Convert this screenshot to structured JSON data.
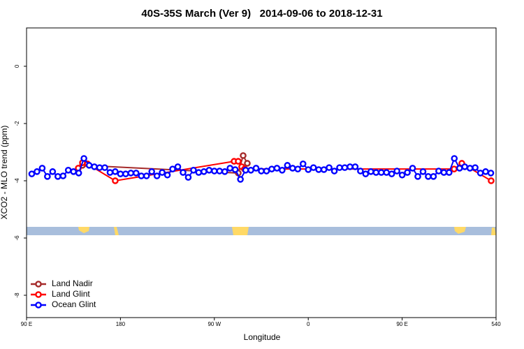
{
  "chart_data": {
    "type": "line",
    "title": "40S-35S March (Ver 9)   2014-09-06 to 2018-12-31",
    "xlabel": "Longitude",
    "ylabel": "XCO2 - MLO trend (ppm)",
    "xlim": [
      90,
      540
    ],
    "ylim": [
      -8.78,
      1.34
    ],
    "xticks": [
      {
        "value": 90,
        "label": "90 E"
      },
      180,
      {
        "value": 270,
        "label": "90 W"
      },
      {
        "value": 360,
        "label": "0"
      },
      {
        "value": 450,
        "label": "90 E"
      },
      540
    ],
    "yticks": [
      0,
      -2,
      -4,
      -6,
      -8
    ],
    "legend": "bottom-left",
    "series": [
      {
        "name": "Land Nadir",
        "color": "#a52a2a",
        "x": [
          143.6,
          292.9,
          297.6,
          301.6
        ],
        "values": [
          -3.46,
          -3.73,
          -3.12,
          -3.39
        ]
      },
      {
        "name": "Land Glint",
        "color": "#ff0000",
        "x": [
          139.6,
          143.6,
          148.3,
          175.0,
          288.9,
          292.9,
          296.2,
          298.9,
          499.8,
          507.2,
          535.3
        ],
        "values": [
          -3.56,
          -3.37,
          -3.41,
          -4.0,
          -3.32,
          -3.32,
          -3.51,
          -3.59,
          -3.59,
          -3.39,
          -4.0
        ]
      },
      {
        "name": "Ocean Glint",
        "color": "#0000ff",
        "x": [
          95,
          100,
          105,
          110,
          115,
          120,
          125,
          130,
          135,
          140,
          145,
          150,
          155,
          160,
          165,
          170,
          175,
          180,
          185,
          190,
          195,
          200,
          205,
          210,
          215,
          220,
          225,
          230,
          235,
          240,
          245,
          250,
          255,
          260,
          265,
          270,
          275,
          280,
          285,
          290,
          295,
          300,
          305,
          310,
          315,
          320,
          325,
          330,
          335,
          340,
          345,
          350,
          355,
          360,
          365,
          370,
          375,
          380,
          385,
          390,
          395,
          400,
          405,
          410,
          415,
          420,
          425,
          430,
          435,
          440,
          445,
          450,
          455,
          460,
          465,
          470,
          475,
          480,
          485,
          490,
          495,
          500,
          505,
          510,
          515,
          520,
          525,
          530,
          535
        ],
        "values": [
          -3.76,
          -3.68,
          -3.56,
          -3.85,
          -3.68,
          -3.85,
          -3.83,
          -3.63,
          -3.68,
          -3.73,
          -3.22,
          -3.46,
          -3.51,
          -3.54,
          -3.54,
          -3.71,
          -3.68,
          -3.76,
          -3.76,
          -3.73,
          -3.73,
          -3.83,
          -3.83,
          -3.68,
          -3.83,
          -3.71,
          -3.8,
          -3.59,
          -3.51,
          -3.71,
          -3.88,
          -3.63,
          -3.71,
          -3.68,
          -3.63,
          -3.66,
          -3.66,
          -3.68,
          -3.56,
          -3.61,
          -3.95,
          -3.63,
          -3.63,
          -3.56,
          -3.66,
          -3.66,
          -3.59,
          -3.56,
          -3.63,
          -3.46,
          -3.56,
          -3.59,
          -3.41,
          -3.61,
          -3.54,
          -3.61,
          -3.61,
          -3.54,
          -3.66,
          -3.54,
          -3.54,
          -3.51,
          -3.51,
          -3.66,
          -3.76,
          -3.68,
          -3.71,
          -3.71,
          -3.71,
          -3.76,
          -3.66,
          -3.8,
          -3.71,
          -3.56,
          -3.85,
          -3.68,
          -3.85,
          -3.85,
          -3.66,
          -3.71,
          -3.71,
          -3.22,
          -3.56,
          -3.51,
          -3.56,
          -3.54,
          -3.73,
          -3.68,
          -3.73
        ]
      }
    ]
  }
}
